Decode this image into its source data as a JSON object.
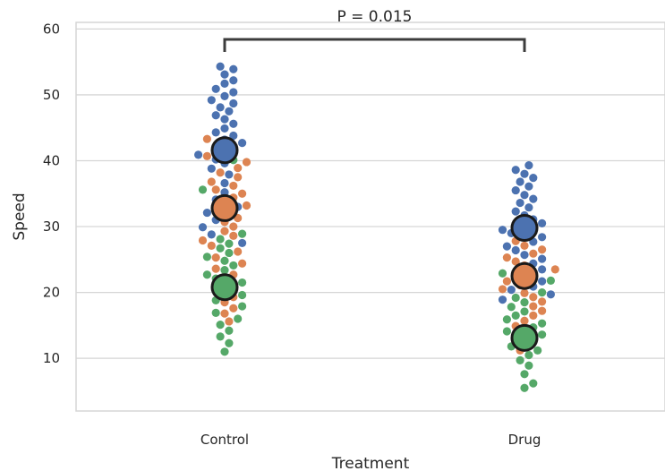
{
  "chart_data": {
    "type": "swarm",
    "title": "",
    "xlabel": "Treatment",
    "ylabel": "Speed",
    "categories": [
      "Control",
      "Drug"
    ],
    "ylim": [
      2,
      61
    ],
    "yticks": [
      10,
      20,
      30,
      40,
      50,
      60
    ],
    "grid": true,
    "legend": "none",
    "annotation": {
      "text": "P = 0.015",
      "between": [
        "Control",
        "Drug"
      ],
      "type": "bracket"
    },
    "series": [
      {
        "color": "#4c72b0",
        "points": {
          "Control": [
            54.3,
            53.9,
            53.1,
            52.2,
            51.7,
            50.9,
            50.4,
            49.8,
            49.2,
            48.7,
            48.1,
            47.5,
            46.9,
            46.3,
            45.6,
            44.9,
            44.3,
            43.8,
            43.2,
            42.7,
            42.1,
            41.5,
            40.9,
            40.2,
            39.6,
            38.8,
            37.9,
            36.6,
            35.2,
            34.1,
            33.0,
            32.1,
            31.0,
            29.9,
            28.8,
            27.5
          ],
          "Drug": [
            39.3,
            38.6,
            38.0,
            37.4,
            36.8,
            36.1,
            35.5,
            34.8,
            34.2,
            33.6,
            32.9,
            32.3,
            31.7,
            31.1,
            30.5,
            30.0,
            29.5,
            29.0,
            28.4,
            27.7,
            27.0,
            26.4,
            25.7,
            25.1,
            24.4,
            23.5,
            22.6,
            21.7,
            20.9,
            20.4,
            19.7,
            18.9
          ]
        },
        "mean": {
          "Control": 41.6,
          "Drug": 29.8
        }
      },
      {
        "color": "#dd8452",
        "points": {
          "Control": [
            43.3,
            42.2,
            40.7,
            39.8,
            38.9,
            38.2,
            37.5,
            36.8,
            36.2,
            35.6,
            35.0,
            34.4,
            33.8,
            33.2,
            32.6,
            32.0,
            31.3,
            30.7,
            30.0,
            29.3,
            28.6,
            27.9,
            27.1,
            26.2,
            25.3,
            24.4,
            23.6,
            22.7,
            21.8,
            20.5,
            19.3,
            18.5,
            17.6,
            16.8,
            15.6
          ],
          "Drug": [
            30.4,
            29.4,
            28.6,
            27.8,
            27.1,
            26.5,
            25.9,
            25.3,
            24.7,
            24.1,
            23.5,
            22.9,
            22.3,
            21.7,
            21.1,
            20.5,
            19.9,
            19.3,
            18.6,
            17.9,
            17.2,
            16.5,
            15.7,
            14.9,
            14.0,
            12.8,
            11.2
          ]
        },
        "mean": {
          "Control": 32.8,
          "Drug": 22.5
        }
      },
      {
        "color": "#55a868",
        "points": {
          "Control": [
            40.1,
            35.6,
            28.9,
            28.1,
            27.4,
            26.7,
            26.0,
            25.4,
            24.8,
            24.1,
            23.4,
            22.7,
            22.1,
            21.5,
            20.9,
            20.3,
            19.6,
            18.8,
            17.9,
            16.9,
            16.0,
            15.1,
            14.2,
            13.3,
            12.3,
            11.0
          ],
          "Drug": [
            22.9,
            21.8,
            20.0,
            19.2,
            18.5,
            17.8,
            17.1,
            16.5,
            15.9,
            15.3,
            14.7,
            14.1,
            13.6,
            13.0,
            12.4,
            11.8,
            11.2,
            10.5,
            9.7,
            8.9,
            7.6,
            6.2,
            5.5
          ]
        },
        "mean": {
          "Control": 20.8,
          "Drug": 13.1
        }
      }
    ]
  }
}
